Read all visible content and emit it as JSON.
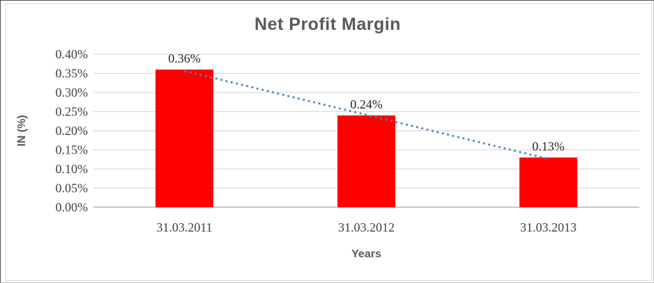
{
  "chart_data": {
    "type": "bar",
    "title": "Net Profit Margin",
    "xlabel": "Years",
    "ylabel": "IN (%)",
    "categories": [
      "31.03.2011",
      "31.03.2012",
      "31.03.2013"
    ],
    "series": [
      {
        "name": "Net Profit Margin",
        "values": [
          0.36,
          0.24,
          0.13
        ]
      }
    ],
    "data_labels": [
      "0.36%",
      "0.24%",
      "0.13%"
    ],
    "ylim": [
      0,
      0.4
    ],
    "ytick_step": 0.05,
    "ytick_labels": [
      "0.00%",
      "0.05%",
      "0.10%",
      "0.15%",
      "0.20%",
      "0.25%",
      "0.30%",
      "0.35%",
      "0.40%"
    ],
    "grid": true,
    "legend": "none",
    "trendline": {
      "type": "linear",
      "style": "dotted",
      "color": "#4e81bd"
    },
    "colors": {
      "bar": "#ff0000",
      "gridline": "#d9d9d9",
      "axis_line": "#a6a6a6",
      "title": "#595959",
      "axis_title": "#595959",
      "tick_label": "#404040",
      "category_label": "#404040",
      "data_label": "#262626",
      "plot_background": "#ffffff"
    }
  }
}
